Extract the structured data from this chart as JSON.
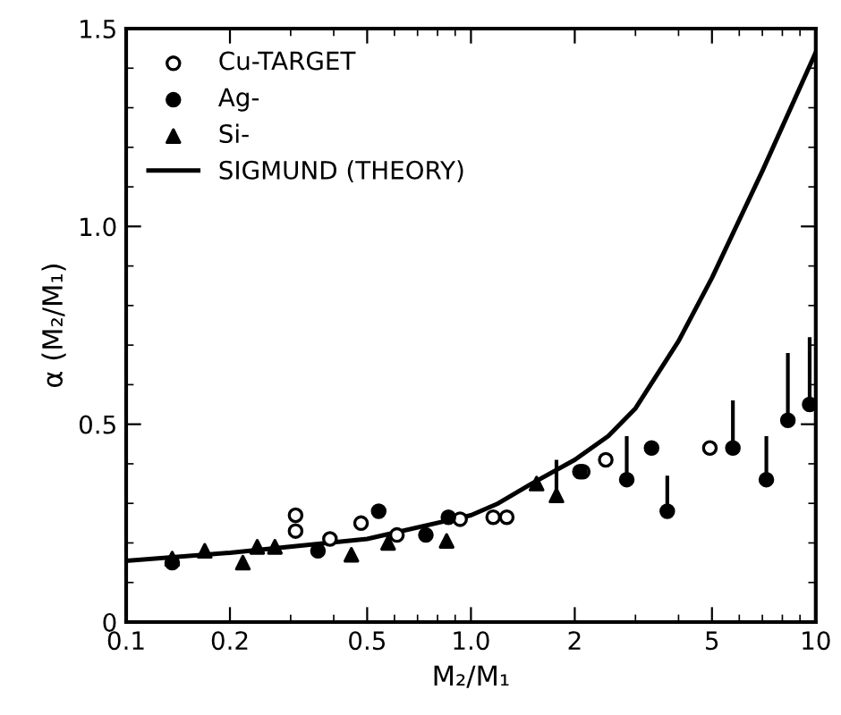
{
  "chart_data": {
    "type": "scatter",
    "xlabel": "M₂/M₁",
    "ylabel": "α (M₂/M₁)",
    "log": "x",
    "xlim": [
      0.1,
      10
    ],
    "ylim": [
      0,
      1.5
    ],
    "xticks": [
      0.1,
      0.2,
      0.5,
      {
        "value": 1,
        "label": "1.0"
      },
      2,
      5,
      10
    ],
    "yticks": [
      0,
      0.5,
      {
        "value": 1,
        "label": "1.0"
      },
      1.5
    ],
    "legend": "top left",
    "grid": false,
    "series": [
      {
        "name": "Cu-TARGET",
        "marker": "circle",
        "color": "#ffffff",
        "x": [
          0.31,
          0.31,
          0.39,
          0.48,
          0.61,
          0.93,
          1.16,
          1.27,
          2.11,
          2.46,
          4.93
        ],
        "values": [
          0.27,
          0.23,
          0.21,
          0.25,
          0.22,
          0.26,
          0.265,
          0.265,
          0.38,
          0.41,
          0.44
        ]
      },
      {
        "name": "Ag-",
        "marker": "circle",
        "color": "#000000",
        "x": [
          0.136,
          0.36,
          0.54,
          0.74,
          0.86,
          2.07,
          2.83,
          3.34,
          3.71,
          5.75,
          7.19,
          8.3,
          9.6
        ],
        "values": [
          0.15,
          0.18,
          0.28,
          0.22,
          0.265,
          0.38,
          0.36,
          0.44,
          0.28,
          0.44,
          0.36,
          0.51,
          0.55
        ],
        "errors": [
          null,
          null,
          null,
          null,
          null,
          null,
          [
            0.36,
            0.47
          ],
          null,
          [
            0.28,
            0.37
          ],
          [
            0.44,
            0.56
          ],
          [
            0.36,
            0.47
          ],
          [
            0.51,
            0.68
          ],
          [
            0.55,
            0.72
          ]
        ]
      },
      {
        "name": "Si-",
        "marker": "triangle",
        "color": "#000000",
        "x": [
          0.136,
          0.169,
          0.218,
          0.24,
          0.27,
          0.45,
          0.575,
          0.85,
          1.55,
          1.77
        ],
        "values": [
          0.16,
          0.18,
          0.15,
          0.19,
          0.19,
          0.17,
          0.2,
          0.205,
          0.35,
          0.32
        ],
        "errors": [
          null,
          null,
          null,
          null,
          null,
          null,
          null,
          null,
          null,
          [
            0.32,
            0.41
          ]
        ]
      },
      {
        "name": "SIGMUND (THEORY)",
        "type": "line",
        "marker": "none",
        "line_style": "solid",
        "color": "#000000",
        "x": [
          0.1,
          0.2,
          0.5,
          1.0,
          1.2,
          1.5,
          2,
          2.5,
          3,
          4,
          5,
          7,
          10
        ],
        "values": [
          0.155,
          0.175,
          0.21,
          0.27,
          0.3,
          0.35,
          0.41,
          0.47,
          0.54,
          0.71,
          0.87,
          1.14,
          1.44
        ]
      }
    ]
  }
}
